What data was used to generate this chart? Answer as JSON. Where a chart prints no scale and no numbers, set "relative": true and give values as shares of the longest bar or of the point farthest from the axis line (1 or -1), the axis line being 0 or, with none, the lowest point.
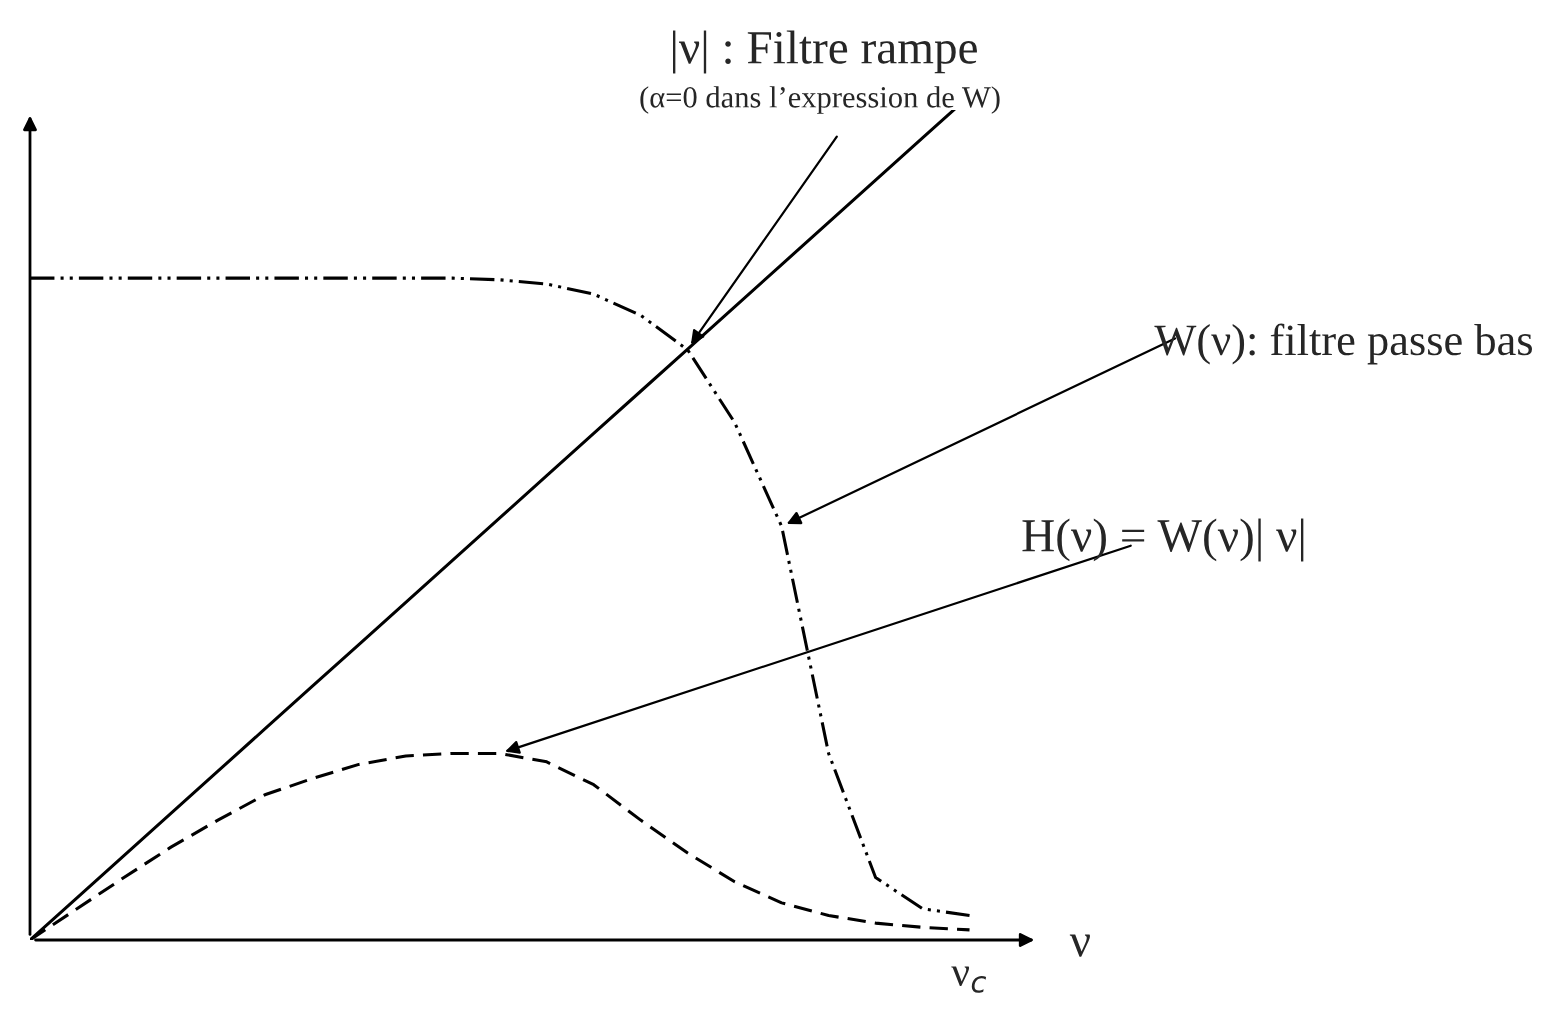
{
  "chart_data": {
    "type": "line",
    "relative": true,
    "xlabel": "ν",
    "categories": [
      null,
      null,
      null,
      null,
      null,
      null,
      null,
      null,
      null,
      null,
      null,
      null,
      null,
      null,
      null,
      null,
      null,
      null,
      null,
      null,
      null
    ],
    "series": [
      {
        "color": "#000000",
        "line_style": "solid",
        "values": [
          0,
          0.05,
          0.1,
          0.15,
          0.2,
          0.25,
          0.3,
          0.35,
          0.4,
          0.45,
          0.5,
          0.55,
          0.6,
          0.65,
          0.7,
          0.75,
          0.8,
          0.85,
          0.9,
          0.95,
          1.0
        ]
      },
      {
        "color": "#000000",
        "line_style": "dashdotdot",
        "values": [
          0.784,
          0.784,
          0.784,
          0.784,
          0.784,
          0.784,
          0.784,
          0.784,
          0.784,
          0.784,
          0.782,
          0.777,
          0.765,
          0.74,
          0.699,
          0.613,
          0.49,
          0.221,
          0.074,
          0.037,
          0.029
        ]
      },
      {
        "color": "#000000",
        "line_style": "dashed",
        "values": [
          0,
          0.037,
          0.074,
          0.11,
          0.142,
          0.172,
          0.191,
          0.208,
          0.218,
          0.221,
          0.221,
          0.211,
          0.184,
          0.142,
          0.103,
          0.069,
          0.044,
          0.029,
          0.02,
          0.015,
          0.012
        ]
      }
    ],
    "annotations": [
      "|ν| : Filtre rampe",
      "(α=0 dans l’expression de W)",
      "W(ν): filtre passe bas",
      "H(ν) = W(ν)| ν|",
      "ν$_{c}$"
    ],
    "grid": false,
    "legend": false
  }
}
